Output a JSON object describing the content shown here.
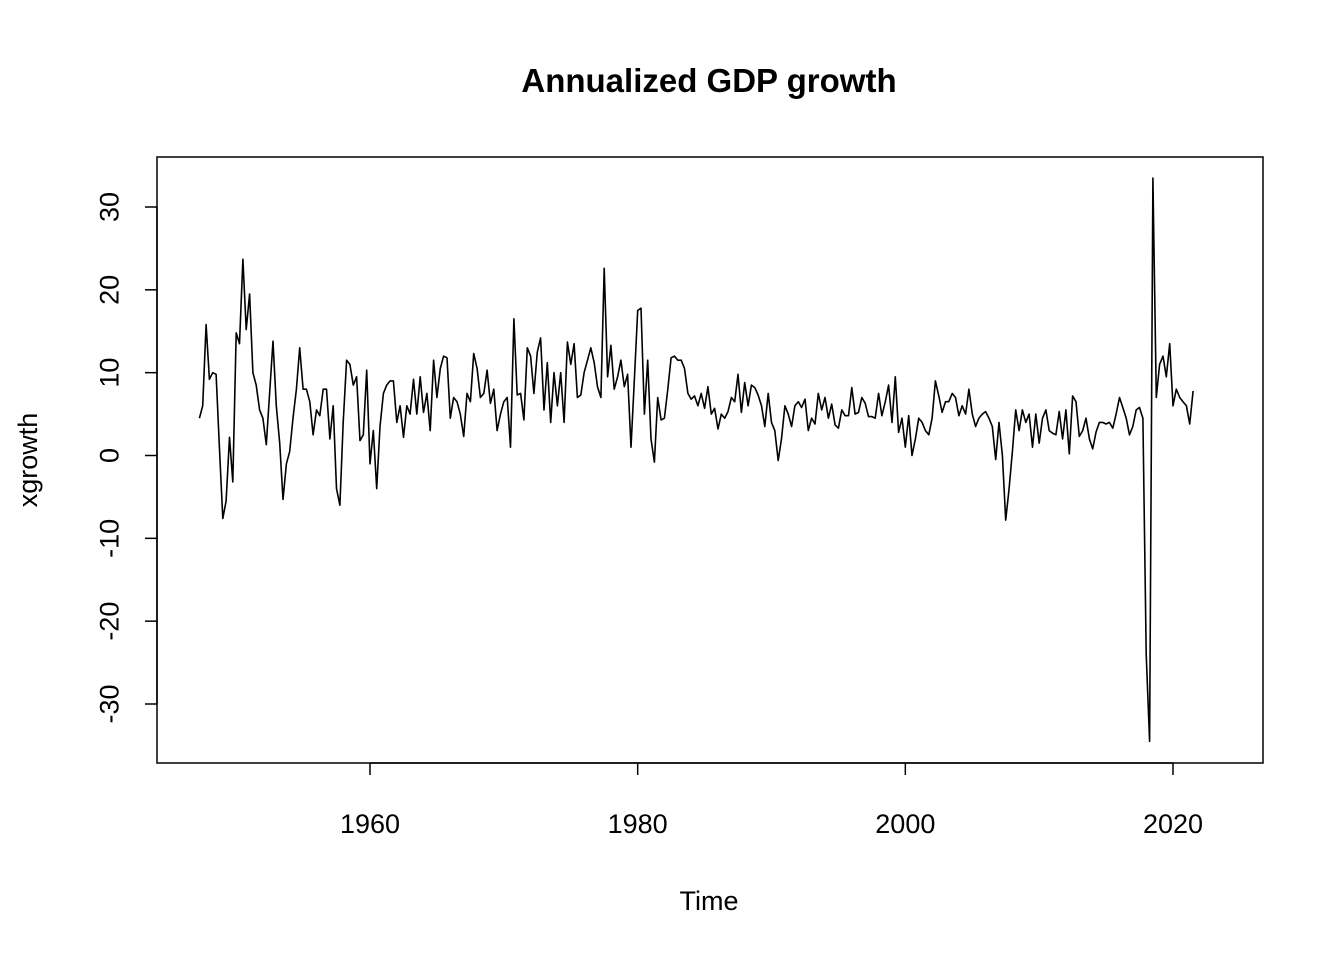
{
  "chart_data": {
    "type": "line",
    "title": "Annualized GDP growth",
    "xlabel": "Time",
    "ylabel": "xgrowth",
    "xlim": [
      1947.0,
      2024.5
    ],
    "ylim": [
      -36,
      36
    ],
    "x_ticks": [
      1960,
      1980,
      2000,
      2020
    ],
    "y_ticks": [
      -30,
      -20,
      -10,
      0,
      10,
      20,
      30
    ],
    "grid": false,
    "legend": "none",
    "line_color": "#000000",
    "series": [
      {
        "x_start": 1947.25,
        "step": 0.25,
        "values": [
          4.5,
          6.0,
          15.8,
          9.2,
          10.0,
          9.8,
          1.0,
          -7.6,
          -5.5,
          2.2,
          -3.2,
          14.8,
          13.5,
          23.7,
          15.2,
          19.5,
          10.0,
          8.5,
          5.5,
          4.5,
          1.3,
          7.5,
          13.8,
          6.0,
          1.5,
          -5.3,
          -1.0,
          0.5,
          4.5,
          8.0,
          13.0,
          8.0,
          8.0,
          6.5,
          2.5,
          5.5,
          4.8,
          8.0,
          8.0,
          2.0,
          6.0,
          -4.0,
          -6.0,
          4.0,
          11.5,
          11.0,
          8.5,
          9.5,
          1.8,
          2.5,
          10.3,
          -1.0,
          3.0,
          -4.0,
          3.5,
          7.5,
          8.5,
          9.0,
          9.0,
          4.0,
          6.0,
          2.2,
          6.0,
          5.0,
          9.2,
          5.0,
          9.5,
          5.2,
          7.5,
          3.0,
          11.5,
          7.0,
          10.5,
          12.0,
          11.8,
          4.5,
          7.0,
          6.5,
          5.0,
          2.3,
          7.5,
          6.5,
          12.3,
          10.5,
          7.0,
          7.5,
          10.3,
          6.3,
          8.0,
          3.0,
          5.0,
          6.5,
          7.0,
          1.0,
          16.5,
          7.3,
          7.5,
          4.3,
          13.0,
          12.0,
          7.5,
          12.5,
          14.2,
          5.5,
          11.2,
          4.0,
          10.0,
          6.0,
          10.0,
          4.0,
          13.7,
          11.0,
          13.5,
          7.0,
          7.3,
          10.0,
          11.5,
          13.0,
          11.2,
          8.3,
          7.0,
          22.6,
          9.5,
          13.3,
          8.0,
          9.5,
          11.5,
          8.3,
          9.8,
          1.0,
          9.0,
          17.5,
          17.8,
          5.0,
          11.5,
          2.0,
          -0.8,
          7.0,
          4.3,
          4.5,
          8.0,
          11.8,
          12.0,
          11.5,
          11.5,
          10.5,
          7.5,
          6.8,
          7.2,
          6.0,
          7.5,
          5.7,
          8.3,
          5.0,
          5.7,
          3.2,
          5.0,
          4.5,
          5.3,
          7.0,
          6.5,
          9.8,
          5.2,
          8.8,
          6.0,
          8.5,
          8.2,
          7.3,
          6.0,
          3.5,
          7.5,
          4.0,
          3.0,
          -0.6,
          2.0,
          6.0,
          5.0,
          3.5,
          6.0,
          6.5,
          5.8,
          6.8,
          3.0,
          4.5,
          3.8,
          7.5,
          5.5,
          7.0,
          4.5,
          6.2,
          3.7,
          3.3,
          5.5,
          4.8,
          4.8,
          8.2,
          5.0,
          5.2,
          7.0,
          6.3,
          4.7,
          4.7,
          4.5,
          7.5,
          4.8,
          6.5,
          8.5,
          4.0,
          9.5,
          2.8,
          4.5,
          1.0,
          4.8,
          0.0,
          2.0,
          4.5,
          4.0,
          3.0,
          2.5,
          4.5,
          9.0,
          7.2,
          5.2,
          6.5,
          6.5,
          7.5,
          7.0,
          4.8,
          6.0,
          5.0,
          8.0,
          5.0,
          3.5,
          4.5,
          5.0,
          5.3,
          4.5,
          3.5,
          -0.5,
          4.0,
          0.0,
          -7.8,
          -4.0,
          0.5,
          5.5,
          3.0,
          5.5,
          4.0,
          5.0,
          1.0,
          5.0,
          1.5,
          4.5,
          5.5,
          3.0,
          2.7,
          2.5,
          5.3,
          2.0,
          5.5,
          0.2,
          7.2,
          6.5,
          2.3,
          3.0,
          4.5,
          2.0,
          0.8,
          2.8,
          4.0,
          4.0,
          3.8,
          4.0,
          3.3,
          5.0,
          7.0,
          5.8,
          4.5,
          2.5,
          3.5,
          5.5,
          5.8,
          4.5,
          -24.0,
          -34.5,
          33.5,
          7.0,
          11.0,
          12.0,
          9.5,
          13.5,
          6.0,
          8.0,
          7.0,
          6.5,
          6.0,
          3.8,
          7.8
        ]
      }
    ]
  }
}
